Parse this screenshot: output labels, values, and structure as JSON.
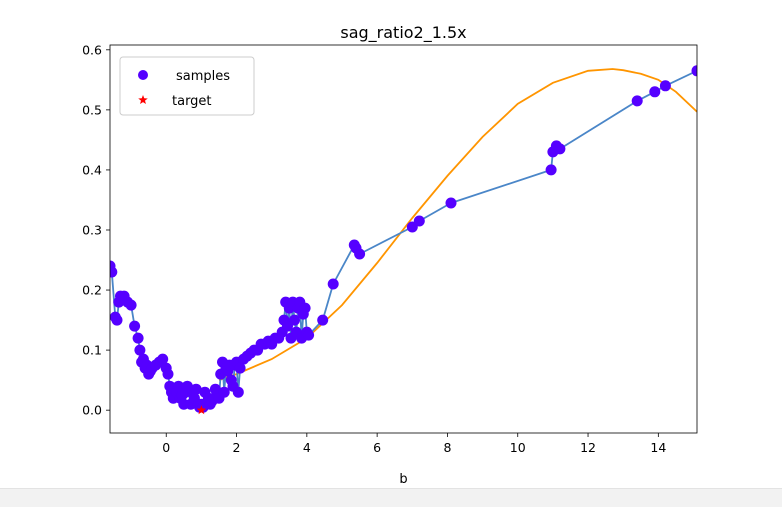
{
  "chart_data": {
    "type": "line",
    "title": "sag_ratio2_1.5x",
    "xlabel": "b",
    "ylabel": "",
    "xlim": [
      -1.6,
      15.1
    ],
    "ylim": [
      -0.038,
      0.608
    ],
    "xticks": [
      0,
      2,
      4,
      6,
      8,
      10,
      12,
      14
    ],
    "xtick_labels": [
      "0",
      "2",
      "4",
      "6",
      "8",
      "10",
      "12",
      "14"
    ],
    "yticks": [
      0.0,
      0.1,
      0.2,
      0.3,
      0.4,
      0.5,
      0.6
    ],
    "ytick_labels": [
      "0.0",
      "0.1",
      "0.2",
      "0.3",
      "0.4",
      "0.5",
      "0.6"
    ],
    "grid": false,
    "legend": {
      "position": "top-left",
      "entries": [
        {
          "label": "samples",
          "marker": "circle",
          "color": "#5500ff"
        },
        {
          "label": "target",
          "marker": "star",
          "color": "#ff0000"
        }
      ]
    },
    "colors": {
      "samples": "#5500ff",
      "samples_line": "#4a86c8",
      "fit_line": "#ff9500",
      "target": "#ff0000"
    },
    "series": [
      {
        "name": "samples",
        "x": [
          -1.6,
          -1.55,
          -1.45,
          -1.4,
          -1.35,
          -1.3,
          -1.25,
          -1.2,
          -1.1,
          -1.0,
          -0.9,
          -0.8,
          -0.75,
          -0.7,
          -0.65,
          -0.6,
          -0.55,
          -0.5,
          -0.45,
          -0.4,
          -0.3,
          -0.2,
          -0.1,
          0.0,
          0.05,
          0.1,
          0.15,
          0.2,
          0.25,
          0.3,
          0.35,
          0.4,
          0.45,
          0.5,
          0.55,
          0.6,
          0.7,
          0.75,
          0.8,
          0.85,
          0.9,
          0.95,
          1.0,
          1.05,
          1.1,
          1.15,
          1.2,
          1.25,
          1.3,
          1.35,
          1.4,
          1.5,
          1.55,
          1.6,
          1.65,
          1.7,
          1.75,
          1.8,
          1.85,
          1.9,
          1.95,
          2.0,
          2.05,
          2.1,
          2.2,
          2.3,
          2.4,
          2.5,
          2.6,
          2.7,
          2.8,
          2.9,
          3.0,
          3.1,
          3.2,
          3.3,
          3.35,
          3.4,
          3.45,
          3.5,
          3.55,
          3.6,
          3.65,
          3.7,
          3.75,
          3.8,
          3.85,
          3.9,
          3.95,
          4.0,
          4.05,
          4.45,
          4.75,
          5.35,
          5.4,
          5.5,
          7.0,
          7.2,
          8.1,
          10.95,
          11.0,
          11.1,
          11.2,
          13.4,
          13.9,
          14.2,
          15.1
        ],
        "y": [
          0.24,
          0.23,
          0.155,
          0.15,
          0.18,
          0.19,
          0.185,
          0.19,
          0.18,
          0.175,
          0.14,
          0.12,
          0.1,
          0.08,
          0.085,
          0.07,
          0.075,
          0.06,
          0.065,
          0.07,
          0.075,
          0.08,
          0.085,
          0.07,
          0.06,
          0.04,
          0.03,
          0.02,
          0.035,
          0.03,
          0.04,
          0.02,
          0.025,
          0.01,
          0.03,
          0.04,
          0.01,
          0.03,
          0.02,
          0.035,
          0.01,
          0.005,
          0.01,
          0.005,
          0.03,
          0.01,
          0.02,
          0.01,
          0.015,
          0.02,
          0.035,
          0.02,
          0.06,
          0.08,
          0.03,
          0.07,
          0.065,
          0.075,
          0.05,
          0.04,
          0.075,
          0.08,
          0.03,
          0.07,
          0.085,
          0.09,
          0.095,
          0.1,
          0.1,
          0.11,
          0.11,
          0.115,
          0.11,
          0.12,
          0.12,
          0.13,
          0.15,
          0.18,
          0.14,
          0.17,
          0.12,
          0.18,
          0.15,
          0.13,
          0.17,
          0.18,
          0.12,
          0.16,
          0.17,
          0.13,
          0.125,
          0.15,
          0.21,
          0.275,
          0.27,
          0.26,
          0.305,
          0.315,
          0.345,
          0.4,
          0.43,
          0.44,
          0.435,
          0.515,
          0.53,
          0.54,
          0.565
        ]
      },
      {
        "name": "fit",
        "x": [
          1.5,
          2.0,
          3.0,
          4.0,
          5.0,
          6.0,
          7.0,
          8.0,
          9.0,
          10.0,
          11.0,
          12.0,
          12.7,
          13.0,
          13.5,
          14.0,
          14.5,
          15.1
        ],
        "y": [
          0.05,
          0.06,
          0.085,
          0.12,
          0.175,
          0.245,
          0.32,
          0.39,
          0.455,
          0.51,
          0.545,
          0.565,
          0.568,
          0.566,
          0.56,
          0.55,
          0.53,
          0.497
        ]
      },
      {
        "name": "target",
        "x": [
          1.0
        ],
        "y": [
          0.0
        ]
      }
    ]
  }
}
